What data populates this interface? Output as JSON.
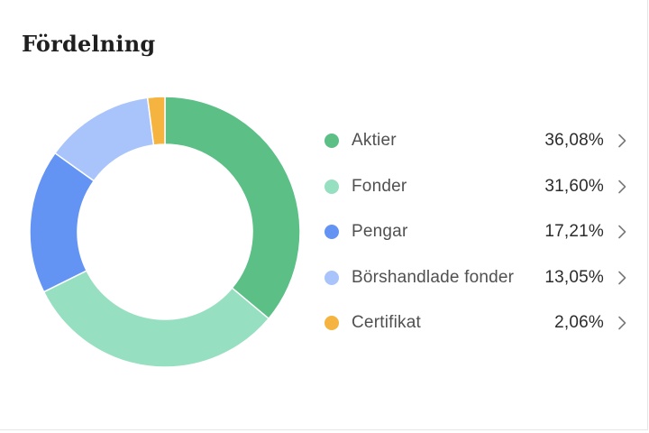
{
  "title": "Fördelning",
  "chart_data": {
    "type": "pie",
    "title": "Fördelning",
    "categories": [
      "Aktier",
      "Fonder",
      "Pengar",
      "Börshandlade fonder",
      "Certifikat"
    ],
    "values": [
      36.08,
      31.6,
      17.21,
      13.05,
      2.06
    ],
    "value_labels": [
      "36,08%",
      "31,60%",
      "17,21%",
      "13,05%",
      "2,06%"
    ],
    "colors": [
      "#5bbf86",
      "#97dfc1",
      "#6394f4",
      "#a9c4fa",
      "#f4b43f"
    ],
    "donut": true,
    "legend_position": "right"
  }
}
